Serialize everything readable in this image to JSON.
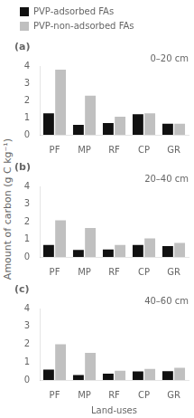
{
  "chart_data": [
    {
      "type": "bar",
      "title": "(a)",
      "subtitle": "0–20 cm",
      "categories": [
        "PF",
        "MP",
        "RF",
        "CP",
        "GR"
      ],
      "series": [
        {
          "name": "PVP-adsorbed FAs",
          "color": "#111111",
          "values": [
            1.25,
            0.58,
            0.68,
            1.2,
            0.65
          ]
        },
        {
          "name": "PVP-non-adsorbed FAs",
          "color": "#c0c0c0",
          "values": [
            3.8,
            2.28,
            1.05,
            1.25,
            0.65
          ]
        }
      ],
      "ylim": [
        0,
        4
      ],
      "yticks": [
        0,
        1,
        2,
        3,
        4
      ],
      "grid": false,
      "legend": "upper left"
    },
    {
      "type": "bar",
      "title": "(b)",
      "subtitle": "20–40 cm",
      "categories": [
        "PF",
        "MP",
        "RF",
        "CP",
        "GR"
      ],
      "series": [
        {
          "name": "PVP-adsorbed FAs",
          "color": "#111111",
          "values": [
            0.68,
            0.4,
            0.42,
            0.68,
            0.62
          ]
        },
        {
          "name": "PVP-non-adsorbed FAs",
          "color": "#c0c0c0",
          "values": [
            2.08,
            1.65,
            0.68,
            1.05,
            0.8
          ]
        }
      ],
      "ylabel": "Amount of carbon (g C kg⁻¹)",
      "ylim": [
        0,
        4
      ],
      "yticks": [
        0,
        1,
        2,
        3,
        4
      ],
      "grid": false
    },
    {
      "type": "bar",
      "title": "(c)",
      "subtitle": "40–60 cm",
      "categories": [
        "PF",
        "MP",
        "RF",
        "CP",
        "GR"
      ],
      "series": [
        {
          "name": "PVP-adsorbed FAs",
          "color": "#111111",
          "values": [
            0.58,
            0.28,
            0.35,
            0.48,
            0.5
          ]
        },
        {
          "name": "PVP-non-adsorbed FAs",
          "color": "#c0c0c0",
          "values": [
            2.0,
            1.52,
            0.52,
            0.62,
            0.68
          ]
        }
      ],
      "xlabel": "Land-uses",
      "ylim": [
        0,
        4
      ],
      "yticks": [
        0,
        1,
        2,
        3,
        4
      ],
      "grid": false
    }
  ]
}
